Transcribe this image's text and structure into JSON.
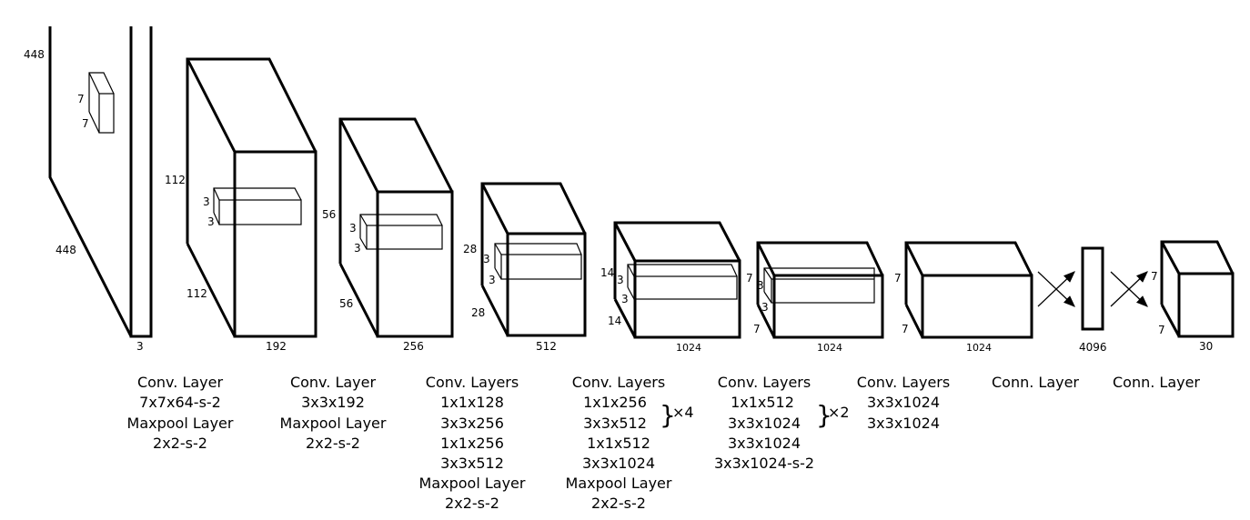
{
  "dimension_labels": {
    "l1": [
      "448",
      "7",
      "7",
      "448",
      "3"
    ],
    "l2": [
      "112",
      "3",
      "3",
      "112",
      "192"
    ],
    "l3": [
      "56",
      "3",
      "3",
      "56",
      "256"
    ],
    "l4": [
      "28",
      "3",
      "3",
      "28",
      "512"
    ],
    "l5": [
      "14",
      "3",
      "3",
      "14",
      "1024"
    ],
    "l6": [
      "7",
      "3",
      "3",
      "7",
      "1024"
    ],
    "l7": [
      "7",
      "7",
      "1024"
    ],
    "fc1": [
      "4096"
    ],
    "out": [
      "7",
      "7",
      "30"
    ]
  },
  "captions": [
    [
      "Conv. Layer",
      "7x7x64-s-2",
      "Maxpool Layer",
      "2x2-s-2"
    ],
    [
      "Conv. Layer",
      "3x3x192",
      "Maxpool Layer",
      "2x2-s-2"
    ],
    [
      "Conv. Layers",
      "1x1x128",
      "3x3x256",
      "1x1x256",
      "3x3x512",
      "Maxpool Layer",
      "2x2-s-2"
    ],
    [
      "Conv. Layers",
      "1x1x256",
      "3x3x512",
      "1x1x512",
      "3x3x1024",
      "Maxpool Layer",
      "2x2-s-2"
    ],
    [
      "Conv. Layers",
      "1x1x512",
      "3x3x1024",
      "3x3x1024",
      "3x3x1024-s-2"
    ],
    [
      "Conv. Layers",
      "3x3x1024",
      "3x3x1024"
    ],
    [
      "Conn. Layer"
    ],
    [
      "Conn. Layer"
    ]
  ],
  "repeat_markers": {
    "block4": {
      "brace": "}",
      "label": "×4"
    },
    "block5": {
      "brace": "}",
      "label": "×2"
    }
  }
}
